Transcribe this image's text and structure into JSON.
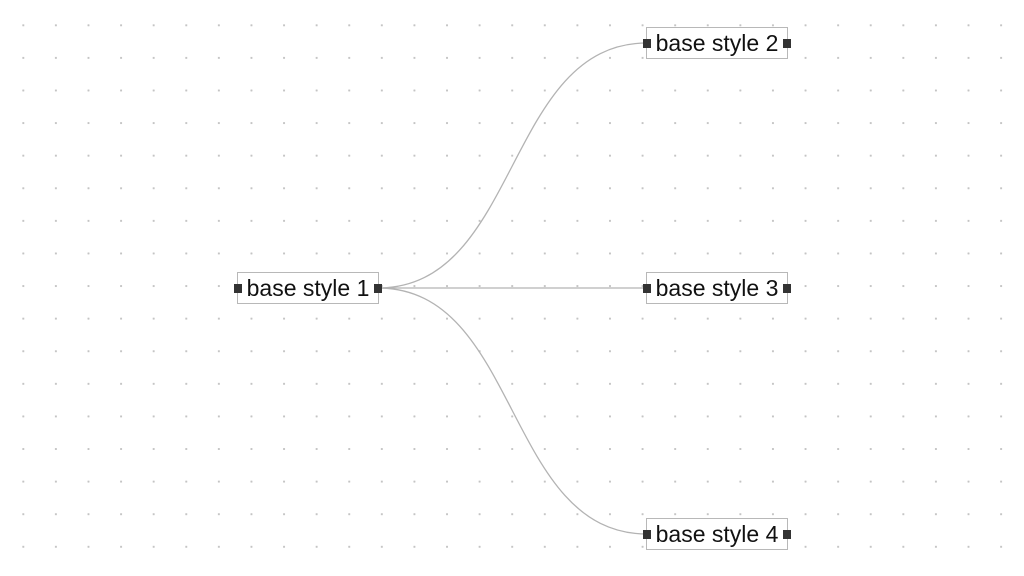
{
  "diagram": {
    "type": "flow-graph",
    "nodes": [
      {
        "id": "n1",
        "label": "base style 1"
      },
      {
        "id": "n2",
        "label": "base style 2"
      },
      {
        "id": "n3",
        "label": "base style 3"
      },
      {
        "id": "n4",
        "label": "base style 4"
      }
    ],
    "edges": [
      {
        "from": "n1",
        "to": "n2"
      },
      {
        "from": "n1",
        "to": "n3"
      },
      {
        "from": "n1",
        "to": "n4"
      }
    ]
  },
  "colors": {
    "edge": "#b3b3b3",
    "handle": "#333333",
    "node_border": "#b8b8b8",
    "grid_dot": "#c4c4c4"
  }
}
